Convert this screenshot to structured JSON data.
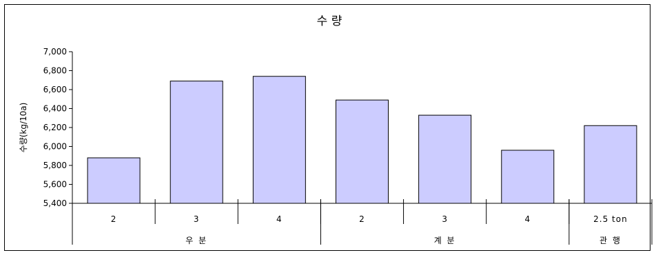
{
  "chart_data": {
    "type": "bar",
    "title": "수 량",
    "ylabel": "수량(kg/10a)",
    "xlabel": "",
    "ylim": [
      5400,
      7000
    ],
    "ytick_labels": [
      "5,400",
      "5,600",
      "5,800",
      "6,000",
      "6,200",
      "6,400",
      "6,600",
      "6,800",
      "7,000"
    ],
    "categories": [
      "2",
      "3",
      "4",
      "2",
      "3",
      "4",
      "2.5 ton"
    ],
    "groups": [
      {
        "label": "우 분",
        "size": 3
      },
      {
        "label": "계 분",
        "size": 3
      },
      {
        "label": "관 행",
        "size": 1
      }
    ],
    "values": [
      5880,
      6690,
      6740,
      6490,
      6330,
      5960,
      6220
    ],
    "bar_color": "#ccccff",
    "bar_edge_color": "#000000",
    "grid": false,
    "legend": "none"
  }
}
